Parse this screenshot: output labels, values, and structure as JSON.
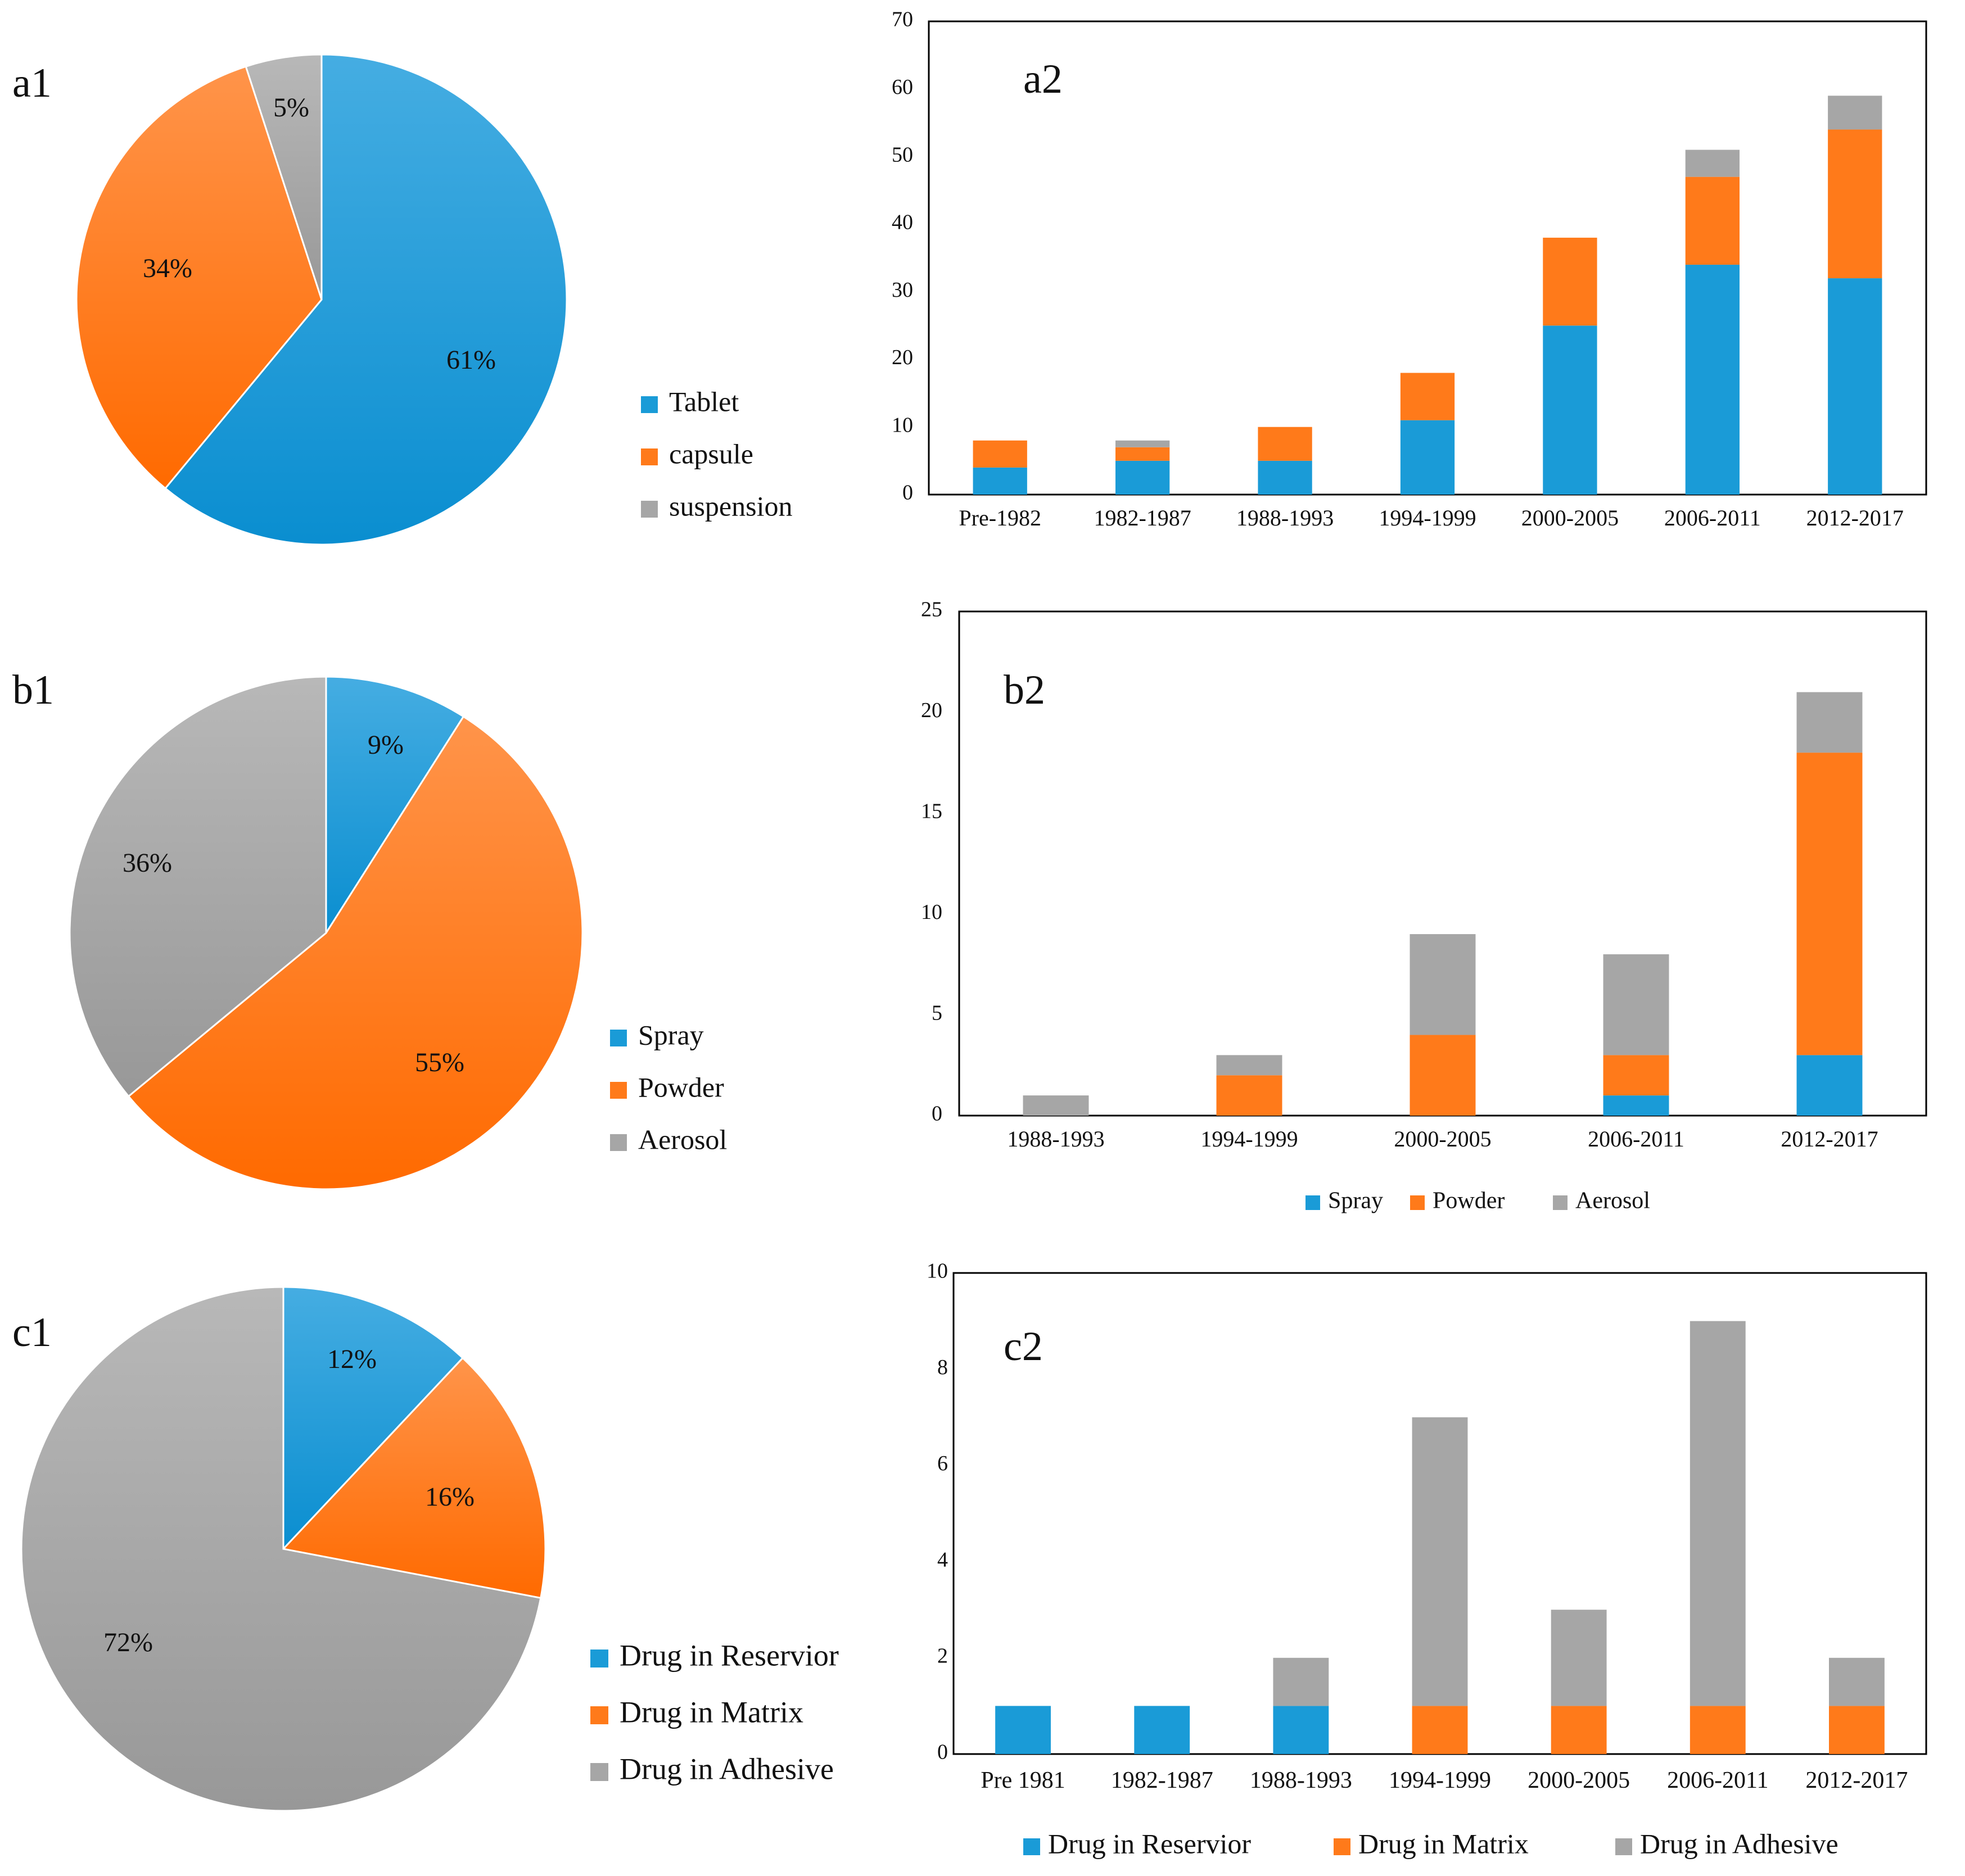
{
  "colors": {
    "blue": "#1A9BD7",
    "orange": "#FF7A1A",
    "gray": "#A6A6A6"
  },
  "chart_data": [
    {
      "id": "a1",
      "type": "pie",
      "panel_label": "a1",
      "slices": [
        {
          "label": "Tablet",
          "value": 61,
          "pct_label": "61%"
        },
        {
          "label": "capsule",
          "value": 34,
          "pct_label": "34%"
        },
        {
          "label": "suspension",
          "value": 5,
          "pct_label": "5%"
        }
      ],
      "legend": [
        "Tablet",
        "capsule",
        "suspension"
      ]
    },
    {
      "id": "a2",
      "type": "bar",
      "stacked": true,
      "panel_label": "a2",
      "categories": [
        "Pre-1982",
        "1982-1987",
        "1988-1993",
        "1994-1999",
        "2000-2005",
        "2006-2011",
        "2012-2017"
      ],
      "series": [
        {
          "name": "Tablet",
          "values": [
            4,
            5,
            5,
            11,
            25,
            34,
            32
          ]
        },
        {
          "name": "capsule",
          "values": [
            4,
            2,
            5,
            7,
            13,
            13,
            22
          ]
        },
        {
          "name": "suspension",
          "values": [
            0,
            1,
            0,
            0,
            0,
            4,
            5
          ]
        }
      ],
      "ylim": [
        0,
        70
      ],
      "yticks": [
        0,
        10,
        20,
        30,
        40,
        50,
        60,
        70
      ]
    },
    {
      "id": "b1",
      "type": "pie",
      "panel_label": "b1",
      "slices": [
        {
          "label": "Spray",
          "value": 9,
          "pct_label": "9%"
        },
        {
          "label": "Powder",
          "value": 55,
          "pct_label": "55%"
        },
        {
          "label": "Aerosol",
          "value": 36,
          "pct_label": "36%"
        }
      ],
      "legend": [
        "Spray",
        "Powder",
        "Aerosol"
      ]
    },
    {
      "id": "b2",
      "type": "bar",
      "stacked": true,
      "panel_label": "b2",
      "categories": [
        "1988-1993",
        "1994-1999",
        "2000-2005",
        "2006-2011",
        "2012-2017"
      ],
      "series": [
        {
          "name": "Spray",
          "values": [
            0,
            0,
            0,
            1,
            3
          ]
        },
        {
          "name": "Powder",
          "values": [
            0,
            2,
            4,
            2,
            15
          ]
        },
        {
          "name": "Aerosol",
          "values": [
            1,
            1,
            5,
            5,
            3
          ]
        }
      ],
      "ylim": [
        0,
        25
      ],
      "yticks": [
        0,
        5,
        10,
        15,
        20,
        25
      ],
      "legend": [
        "Spray",
        "Powder",
        "Aerosol"
      ]
    },
    {
      "id": "c1",
      "type": "pie",
      "panel_label": "c1",
      "slices": [
        {
          "label": "Drug in Reservior",
          "value": 12,
          "pct_label": "12%"
        },
        {
          "label": "Drug in Matrix",
          "value": 16,
          "pct_label": "16%"
        },
        {
          "label": "Drug in Adhesive",
          "value": 72,
          "pct_label": "72%"
        }
      ],
      "legend": [
        "Drug in Reservior",
        "Drug in Matrix",
        "Drug in Adhesive"
      ]
    },
    {
      "id": "c2",
      "type": "bar",
      "stacked": true,
      "panel_label": "c2",
      "categories": [
        "Pre 1981",
        "1982-1987",
        "1988-1993",
        "1994-1999",
        "2000-2005",
        "2006-2011",
        "2012-2017"
      ],
      "series": [
        {
          "name": "Drug in Reservior",
          "values": [
            1,
            1,
            1,
            0,
            0,
            0,
            0
          ]
        },
        {
          "name": "Drug in Matrix",
          "values": [
            0,
            0,
            0,
            1,
            1,
            1,
            1
          ]
        },
        {
          "name": "Drug in Adhesive",
          "values": [
            0,
            0,
            1,
            6,
            2,
            8,
            1
          ]
        }
      ],
      "ylim": [
        0,
        10
      ],
      "yticks": [
        0,
        2,
        4,
        6,
        8,
        10
      ],
      "legend": [
        "Drug in Reservior",
        "Drug in Matrix",
        "Drug in Adhesive"
      ]
    }
  ]
}
